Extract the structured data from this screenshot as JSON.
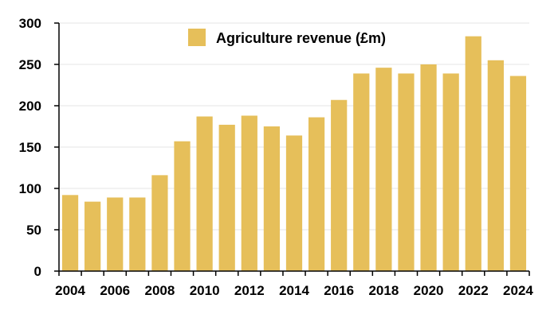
{
  "chart_data": {
    "type": "bar",
    "categories": [
      "2004",
      "2005",
      "2006",
      "2007",
      "2008",
      "2009",
      "2010",
      "2011",
      "2012",
      "2013",
      "2014",
      "2015",
      "2016",
      "2017",
      "2018",
      "2019",
      "2020",
      "2021",
      "2022",
      "2023",
      "2024"
    ],
    "series": [
      {
        "name": "Agriculture revenue (£m)",
        "color": "#E6BF5A",
        "values": [
          92,
          84,
          89,
          89,
          116,
          157,
          187,
          177,
          188,
          175,
          164,
          186,
          207,
          239,
          246,
          239,
          250,
          239,
          284,
          255,
          236
        ]
      }
    ],
    "x_tick_labels": [
      "2004",
      "2006",
      "2008",
      "2010",
      "2012",
      "2014",
      "2016",
      "2018",
      "2020",
      "2022",
      "2024"
    ],
    "y_ticks": [
      0,
      50,
      100,
      150,
      200,
      250,
      300
    ],
    "ylim": [
      0,
      300
    ],
    "grid": true,
    "legend_position": "top-center"
  }
}
